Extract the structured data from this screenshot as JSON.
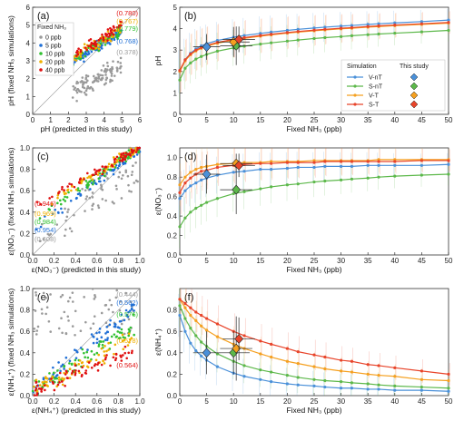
{
  "figure_colors": {
    "V_nT": "#4a90d9",
    "S_nT": "#5cb84a",
    "V_T": "#f5a020",
    "S_T": "#e8442a",
    "ppb0": "#9a9a9a",
    "ppb5": "#1f6fd6",
    "ppb10": "#30c030",
    "ppb20": "#f0b000",
    "ppb40": "#e01010"
  },
  "chart_data": [
    {
      "panel": "a",
      "panel_label": "(a)",
      "type": "scatter",
      "xlabel": "pH (predicted in this study)",
      "ylabel": "pH (fixed NH₃ simulations)",
      "xlim": [
        0,
        6
      ],
      "ylim": [
        0,
        6
      ],
      "x_ticks": [
        "0",
        "1",
        "2",
        "3",
        "4",
        "5",
        "6"
      ],
      "y_ticks": [
        "0",
        "1",
        "2",
        "3",
        "4",
        "5",
        "6"
      ],
      "legend_title": "Fixed NH₃",
      "series": [
        {
          "name": "0 ppb",
          "r": "(0.378)",
          "center": [
            3.3,
            2.3
          ],
          "n": 110
        },
        {
          "name": "5 ppb",
          "r": "(0.768)",
          "center": [
            3.5,
            3.8
          ],
          "n": 80
        },
        {
          "name": "10 ppb",
          "r": "(0.779)",
          "center": [
            3.4,
            4.2
          ],
          "n": 70
        },
        {
          "name": "20 ppb",
          "r": "(0.767)",
          "center": [
            3.4,
            4.4
          ],
          "n": 60
        },
        {
          "name": "40 ppb",
          "r": "(0.780)",
          "center": [
            3.3,
            4.5
          ],
          "n": 60
        }
      ]
    },
    {
      "panel": "b",
      "panel_label": "(b)",
      "type": "line",
      "xlabel": "Fixed NH₃ (ppb)",
      "ylabel": "pH",
      "xlim": [
        0,
        50
      ],
      "ylim": [
        0,
        5
      ],
      "x_ticks": [
        "0",
        "5",
        "10",
        "15",
        "20",
        "25",
        "30",
        "35",
        "40",
        "45",
        "50"
      ],
      "y_ticks": [
        "0",
        "1",
        "2",
        "3",
        "4",
        "5"
      ],
      "legend_header": [
        "Simulation",
        "This study"
      ],
      "x": [
        0,
        1,
        2,
        3,
        4,
        5,
        7,
        10,
        12,
        15,
        17,
        20,
        22,
        25,
        27,
        30,
        32,
        35,
        37,
        40,
        45,
        50
      ],
      "series": [
        {
          "name": "V-nT",
          "values": [
            2.0,
            2.55,
            2.85,
            3.05,
            3.2,
            3.3,
            3.45,
            3.6,
            3.68,
            3.78,
            3.84,
            3.92,
            3.97,
            4.03,
            4.07,
            4.12,
            4.15,
            4.2,
            4.23,
            4.27,
            4.33,
            4.4
          ]
        },
        {
          "name": "S-nT",
          "values": [
            1.6,
            2.15,
            2.4,
            2.58,
            2.7,
            2.8,
            2.95,
            3.1,
            3.18,
            3.28,
            3.34,
            3.42,
            3.47,
            3.54,
            3.58,
            3.63,
            3.67,
            3.72,
            3.75,
            3.79,
            3.85,
            3.92
          ]
        },
        {
          "name": "V-T",
          "values": [
            2.0,
            2.5,
            2.78,
            2.96,
            3.08,
            3.18,
            3.32,
            3.47,
            3.55,
            3.65,
            3.71,
            3.79,
            3.84,
            3.9,
            3.94,
            3.99,
            4.02,
            4.07,
            4.1,
            4.14,
            4.2,
            4.26
          ]
        },
        {
          "name": "S-T",
          "values": [
            2.05,
            2.55,
            2.82,
            3.0,
            3.12,
            3.22,
            3.36,
            3.5,
            3.58,
            3.68,
            3.74,
            3.82,
            3.87,
            3.93,
            3.97,
            4.02,
            4.05,
            4.1,
            4.13,
            4.17,
            4.23,
            4.29
          ]
        }
      ],
      "this_study": [
        {
          "name": "V-nT",
          "x": 5,
          "y": 3.15,
          "xerr": 2.5,
          "yerr": 0.6
        },
        {
          "name": "S-nT",
          "x": 10.5,
          "y": 3.2,
          "xerr": 3,
          "yerr": 0.9
        },
        {
          "name": "V-T",
          "x": 10,
          "y": 3.38,
          "xerr": 3,
          "yerr": 0.7
        },
        {
          "name": "S-T",
          "x": 11,
          "y": 3.5,
          "xerr": 3,
          "yerr": 0.6
        }
      ]
    },
    {
      "panel": "c",
      "panel_label": "(c)",
      "type": "scatter",
      "xlabel": "ε(NO₃⁻) (predicted in this study)",
      "ylabel": "ε(NO₃⁻) (fixed NH₃ simulations)",
      "xlim": [
        0,
        1
      ],
      "ylim": [
        0,
        1
      ],
      "x_ticks": [
        "0.0",
        "0.2",
        "0.4",
        "0.6",
        "0.8",
        "1.0"
      ],
      "y_ticks": [
        "0.0",
        "0.2",
        "0.4",
        "0.6",
        "0.8",
        "1.0"
      ],
      "series": [
        {
          "name": "0 ppb",
          "r": "(0.608)"
        },
        {
          "name": "5 ppb",
          "r": "(0.954)"
        },
        {
          "name": "10 ppb",
          "r": "(0.984)"
        },
        {
          "name": "20 ppb",
          "r": "(0.969)"
        },
        {
          "name": "40 ppb",
          "r": "(0.946)"
        }
      ]
    },
    {
      "panel": "d",
      "panel_label": "(d)",
      "type": "line",
      "xlabel": "Fixed NH₃ (ppb)",
      "ylabel": "ε(NO₃⁻)",
      "xlim": [
        0,
        50
      ],
      "ylim": [
        0,
        1.1
      ],
      "x_ticks": [
        "0",
        "5",
        "10",
        "15",
        "20",
        "25",
        "30",
        "35",
        "40",
        "45",
        "50"
      ],
      "y_ticks": [
        "0.0",
        "0.2",
        "0.4",
        "0.6",
        "0.8",
        "1.0"
      ],
      "x": [
        0,
        1,
        2,
        3,
        4,
        5,
        7,
        10,
        12,
        15,
        17,
        20,
        22,
        25,
        27,
        30,
        32,
        35,
        37,
        40,
        45,
        50
      ],
      "series": [
        {
          "name": "V-nT",
          "values": [
            0.58,
            0.66,
            0.71,
            0.74,
            0.77,
            0.79,
            0.82,
            0.85,
            0.86,
            0.88,
            0.88,
            0.89,
            0.9,
            0.9,
            0.91,
            0.91,
            0.91,
            0.92,
            0.92,
            0.92,
            0.92,
            0.93
          ]
        },
        {
          "name": "S-nT",
          "values": [
            0.29,
            0.38,
            0.44,
            0.48,
            0.51,
            0.54,
            0.58,
            0.63,
            0.65,
            0.68,
            0.7,
            0.72,
            0.73,
            0.75,
            0.76,
            0.77,
            0.78,
            0.79,
            0.8,
            0.81,
            0.82,
            0.83
          ]
        },
        {
          "name": "V-T",
          "values": [
            0.72,
            0.8,
            0.85,
            0.88,
            0.9,
            0.91,
            0.93,
            0.94,
            0.95,
            0.95,
            0.96,
            0.96,
            0.96,
            0.97,
            0.97,
            0.97,
            0.97,
            0.97,
            0.98,
            0.98,
            0.98,
            0.98
          ]
        },
        {
          "name": "S-T",
          "values": [
            0.64,
            0.74,
            0.79,
            0.83,
            0.86,
            0.87,
            0.9,
            0.92,
            0.93,
            0.94,
            0.94,
            0.95,
            0.95,
            0.95,
            0.96,
            0.96,
            0.96,
            0.96,
            0.96,
            0.96,
            0.97,
            0.97
          ]
        }
      ],
      "this_study": [
        {
          "name": "V-nT",
          "x": 5,
          "y": 0.83,
          "xerr": 2.5,
          "yerr": 0.2
        },
        {
          "name": "S-nT",
          "x": 10.5,
          "y": 0.67,
          "xerr": 3,
          "yerr": 0.25
        },
        {
          "name": "V-T",
          "x": 10.5,
          "y": 0.94,
          "xerr": 3,
          "yerr": 0.1
        },
        {
          "name": "S-T",
          "x": 11,
          "y": 0.92,
          "xerr": 3,
          "yerr": 0.12
        }
      ]
    },
    {
      "panel": "e",
      "panel_label": "(e)",
      "type": "scatter",
      "xlabel": "ε(NH₄⁺) (predicted in this study)",
      "ylabel": "ε(NH₄⁺) (fixed NH₃ simulations)",
      "xlim": [
        0,
        1
      ],
      "ylim": [
        0,
        1
      ],
      "x_ticks": [
        "0.0",
        "0.2",
        "0.4",
        "0.6",
        "0.8",
        "1.0"
      ],
      "y_ticks": [
        "0.0",
        "0.2",
        "0.4",
        "0.6",
        "0.8",
        "1.0"
      ],
      "series": [
        {
          "name": "0 ppb",
          "r": "(0.444)"
        },
        {
          "name": "5 ppb",
          "r": "(0.562)"
        },
        {
          "name": "10 ppb",
          "r": "(0.576)"
        },
        {
          "name": "20 ppb",
          "r": "(0.578)"
        },
        {
          "name": "40 ppb",
          "r": "(0.564)"
        }
      ]
    },
    {
      "panel": "f",
      "panel_label": "(f)",
      "type": "line",
      "xlabel": "Fixed NH₃ (ppb)",
      "ylabel": "ε(NH₄⁺)",
      "xlim": [
        0,
        50
      ],
      "ylim": [
        0,
        1
      ],
      "x_ticks": [
        "0",
        "5",
        "10",
        "15",
        "20",
        "25",
        "30",
        "35",
        "40",
        "45",
        "50"
      ],
      "y_ticks": [
        "0.0",
        "0.2",
        "0.4",
        "0.6",
        "0.8"
      ],
      "x": [
        0,
        1,
        2,
        3,
        4,
        5,
        7,
        10,
        12,
        15,
        17,
        20,
        22,
        25,
        27,
        30,
        32,
        35,
        37,
        40,
        45,
        50
      ],
      "series": [
        {
          "name": "V-nT",
          "values": [
            0.75,
            0.6,
            0.49,
            0.42,
            0.37,
            0.33,
            0.27,
            0.21,
            0.18,
            0.15,
            0.13,
            0.11,
            0.1,
            0.09,
            0.08,
            0.07,
            0.07,
            0.06,
            0.06,
            0.05,
            0.05,
            0.04
          ]
        },
        {
          "name": "S-nT",
          "values": [
            0.84,
            0.72,
            0.63,
            0.56,
            0.5,
            0.46,
            0.39,
            0.32,
            0.28,
            0.24,
            0.22,
            0.19,
            0.17,
            0.15,
            0.14,
            0.13,
            0.12,
            0.11,
            0.1,
            0.09,
            0.08,
            0.07
          ]
        },
        {
          "name": "V-T",
          "values": [
            0.9,
            0.82,
            0.75,
            0.7,
            0.65,
            0.61,
            0.55,
            0.48,
            0.44,
            0.39,
            0.36,
            0.32,
            0.3,
            0.27,
            0.25,
            0.23,
            0.22,
            0.2,
            0.19,
            0.18,
            0.15,
            0.14
          ]
        },
        {
          "name": "S-T",
          "values": [
            0.9,
            0.86,
            0.82,
            0.78,
            0.75,
            0.72,
            0.67,
            0.6,
            0.56,
            0.51,
            0.48,
            0.44,
            0.41,
            0.38,
            0.36,
            0.33,
            0.32,
            0.29,
            0.28,
            0.26,
            0.23,
            0.2
          ]
        }
      ],
      "this_study": [
        {
          "name": "V-nT",
          "x": 5,
          "y": 0.4,
          "xerr": 2.5,
          "yerr": 0.2
        },
        {
          "name": "S-nT",
          "x": 10,
          "y": 0.4,
          "xerr": 3,
          "yerr": 0.2
        },
        {
          "name": "V-T",
          "x": 10.5,
          "y": 0.44,
          "xerr": 3,
          "yerr": 0.3
        },
        {
          "name": "S-T",
          "x": 11,
          "y": 0.53,
          "xerr": 3,
          "yerr": 0.2
        }
      ]
    }
  ]
}
